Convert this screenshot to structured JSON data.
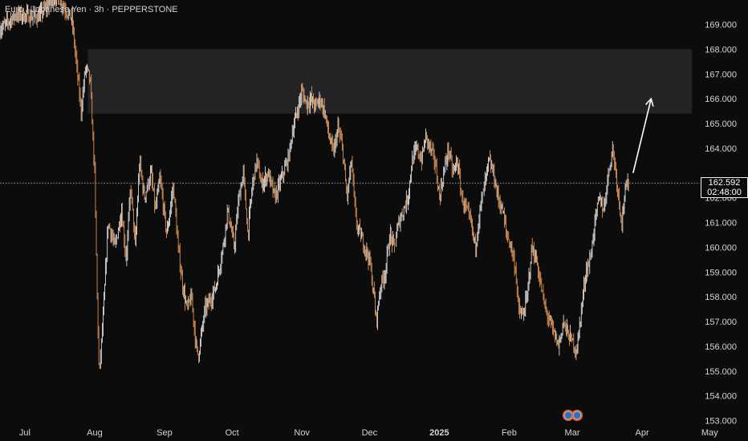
{
  "header": {
    "title": "Euro / Japanese Yen · 3h · PEPPERSTONE"
  },
  "colors": {
    "background": "#0c0c0c",
    "candle_up": "#f5f5f5",
    "candle_down": "#f2a25b",
    "zone_fill": "#232325",
    "axis_text": "#d1d4dc",
    "price_line": "#9a9a9a",
    "arrow": "#ffffff",
    "marker_outer": "#e0673b",
    "marker_inner": "#2f6fb3"
  },
  "price_badge": {
    "price": "162.592",
    "countdown": "02:48:00"
  },
  "chart_data": {
    "type": "candlestick",
    "title": "Euro / Japanese Yen · 3h · PEPPERSTONE",
    "xlabel": "",
    "ylabel": "",
    "ylim": [
      152.8,
      170.4
    ],
    "y_ticks": [
      "153.000",
      "154.000",
      "155.000",
      "156.000",
      "157.000",
      "158.000",
      "159.000",
      "160.000",
      "161.000",
      "162.000",
      "163.000",
      "164.000",
      "165.000",
      "166.000",
      "167.000",
      "168.000",
      "169.000"
    ],
    "x_ticks": [
      {
        "label": "Jul",
        "day": 0,
        "bold": false
      },
      {
        "label": "Aug",
        "day": 31,
        "bold": false
      },
      {
        "label": "Sep",
        "day": 62,
        "bold": false
      },
      {
        "label": "Oct",
        "day": 92,
        "bold": false
      },
      {
        "label": "Nov",
        "day": 123,
        "bold": false
      },
      {
        "label": "Dec",
        "day": 153,
        "bold": false
      },
      {
        "label": "2025",
        "day": 184,
        "bold": true
      },
      {
        "label": "Feb",
        "day": 215,
        "bold": false
      },
      {
        "label": "Mar",
        "day": 243,
        "bold": false
      },
      {
        "label": "Apr",
        "day": 274,
        "bold": false
      },
      {
        "label": "May",
        "day": 304,
        "bold": false
      }
    ],
    "x_range_days": [
      -11,
      321
    ],
    "last_day": 268,
    "current_price": 162.592,
    "path": [
      [
        -11,
        168.8
      ],
      [
        -4,
        169.4
      ],
      [
        6,
        169.3
      ],
      [
        14,
        170.2
      ],
      [
        21,
        169.2
      ],
      [
        25,
        165.5
      ],
      [
        27,
        167.3
      ],
      [
        29,
        166.8
      ],
      [
        31,
        163.0
      ],
      [
        32,
        158.5
      ],
      [
        33,
        154.8
      ],
      [
        35,
        157.5
      ],
      [
        37,
        161.0
      ],
      [
        40,
        160.0
      ],
      [
        43,
        161.5
      ],
      [
        45,
        159.5
      ],
      [
        47,
        162.5
      ],
      [
        49,
        160.0
      ],
      [
        51,
        163.5
      ],
      [
        53,
        162.0
      ],
      [
        56,
        163.0
      ],
      [
        58,
        161.5
      ],
      [
        60,
        162.8
      ],
      [
        63,
        160.5
      ],
      [
        66,
        162.5
      ],
      [
        68,
        160.0
      ],
      [
        70,
        158.5
      ],
      [
        72,
        157.5
      ],
      [
        74,
        158.0
      ],
      [
        76,
        156.0
      ],
      [
        77,
        155.6
      ],
      [
        80,
        157.5
      ],
      [
        83,
        158.0
      ],
      [
        85,
        158.5
      ],
      [
        88,
        160.0
      ],
      [
        90,
        161.5
      ],
      [
        93,
        160.0
      ],
      [
        95,
        162.0
      ],
      [
        97,
        163.0
      ],
      [
        99,
        160.5
      ],
      [
        101,
        162.5
      ],
      [
        103,
        163.5
      ],
      [
        105,
        162.5
      ],
      [
        108,
        163.0
      ],
      [
        111,
        162.0
      ],
      [
        114,
        162.8
      ],
      [
        117,
        163.6
      ],
      [
        119,
        164.8
      ],
      [
        121,
        165.5
      ],
      [
        123,
        166.3
      ],
      [
        125,
        165.8
      ],
      [
        127,
        166.0
      ],
      [
        129,
        165.7
      ],
      [
        131,
        166.0
      ],
      [
        133,
        165.5
      ],
      [
        135,
        164.5
      ],
      [
        137,
        163.8
      ],
      [
        139,
        164.8
      ],
      [
        141,
        164.0
      ],
      [
        143,
        162.0
      ],
      [
        145,
        163.5
      ],
      [
        147,
        161.0
      ],
      [
        149,
        160.5
      ],
      [
        151,
        160.0
      ],
      [
        153,
        159.5
      ],
      [
        155,
        158.0
      ],
      [
        156,
        157.0
      ],
      [
        158,
        158.5
      ],
      [
        160,
        159.0
      ],
      [
        162,
        160.5
      ],
      [
        164,
        160.0
      ],
      [
        166,
        161.0
      ],
      [
        168,
        161.5
      ],
      [
        170,
        162.0
      ],
      [
        172,
        163.5
      ],
      [
        174,
        164.0
      ],
      [
        176,
        163.5
      ],
      [
        178,
        164.5
      ],
      [
        180,
        164.0
      ],
      [
        182,
        163.5
      ],
      [
        184,
        162.0
      ],
      [
        186,
        163.0
      ],
      [
        188,
        164.0
      ],
      [
        190,
        163.0
      ],
      [
        192,
        163.5
      ],
      [
        194,
        162.0
      ],
      [
        196,
        161.5
      ],
      [
        198,
        161.0
      ],
      [
        200,
        160.0
      ],
      [
        202,
        161.5
      ],
      [
        204,
        162.5
      ],
      [
        206,
        163.5
      ],
      [
        208,
        163.0
      ],
      [
        210,
        162.0
      ],
      [
        212,
        161.5
      ],
      [
        214,
        160.5
      ],
      [
        216,
        160.0
      ],
      [
        218,
        159.0
      ],
      [
        219,
        157.5
      ],
      [
        221,
        157.2
      ],
      [
        223,
        158.0
      ],
      [
        225,
        160.0
      ],
      [
        227,
        159.5
      ],
      [
        229,
        158.5
      ],
      [
        231,
        157.5
      ],
      [
        233,
        157.0
      ],
      [
        235,
        156.5
      ],
      [
        237,
        156.0
      ],
      [
        239,
        157.0
      ],
      [
        241,
        156.5
      ],
      [
        243,
        156.2
      ],
      [
        245,
        155.8
      ],
      [
        247,
        157.5
      ],
      [
        249,
        159.0
      ],
      [
        251,
        159.5
      ],
      [
        253,
        161.0
      ],
      [
        255,
        162.0
      ],
      [
        257,
        161.5
      ],
      [
        259,
        163.0
      ],
      [
        261,
        164.0
      ],
      [
        263,
        162.5
      ],
      [
        265,
        161.0
      ],
      [
        266,
        162.0
      ],
      [
        267,
        162.4
      ],
      [
        268,
        162.6
      ]
    ],
    "annotations": [
      {
        "type": "zone",
        "y_from": 165.4,
        "y_to": 168.0,
        "x_from_day": 28
      },
      {
        "type": "arrow",
        "from": [
          270,
          163.0
        ],
        "to": [
          278,
          166.0
        ]
      },
      {
        "type": "price_line",
        "y": 162.592
      }
    ]
  }
}
